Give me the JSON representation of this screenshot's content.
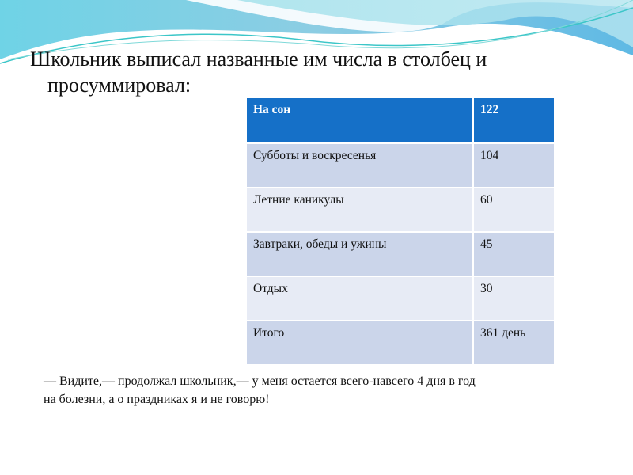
{
  "title": {
    "line1": "Школьник выписал названные им числа в столбец и",
    "line2": "просуммировал:"
  },
  "table": {
    "header": {
      "label": "На сон",
      "value": "122"
    },
    "rows": [
      {
        "label": "Субботы и воскресенья",
        "value": "104"
      },
      {
        "label": "Летние каникулы",
        "value": "60"
      },
      {
        "label": "Завтраки, обеды и ужины",
        "value": "45"
      },
      {
        "label": "Отдых",
        "value": "30"
      },
      {
        "label": "Итого",
        "value": "361 день"
      }
    ]
  },
  "footer": {
    "line1": "— Видите,— продолжал школьник,— у меня остается всего-навсего 4 дня в год",
    "line2": "на болезни, а о праздниках я и не говорю!"
  },
  "colors": {
    "header": "#1570c8",
    "row_dark": "#cbd5ea",
    "row_light": "#e7ebf5"
  }
}
